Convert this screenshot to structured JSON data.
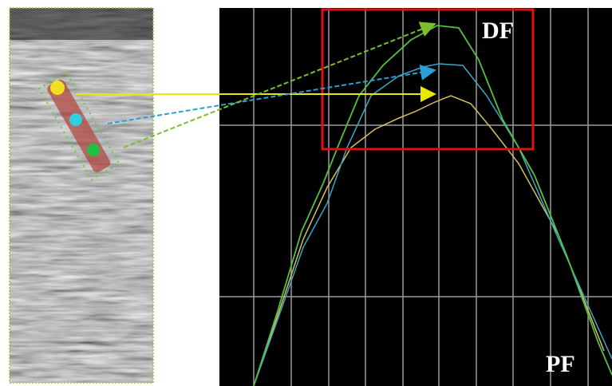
{
  "labels": {
    "top_right": "DF",
    "bottom_right": "PF"
  }
}
